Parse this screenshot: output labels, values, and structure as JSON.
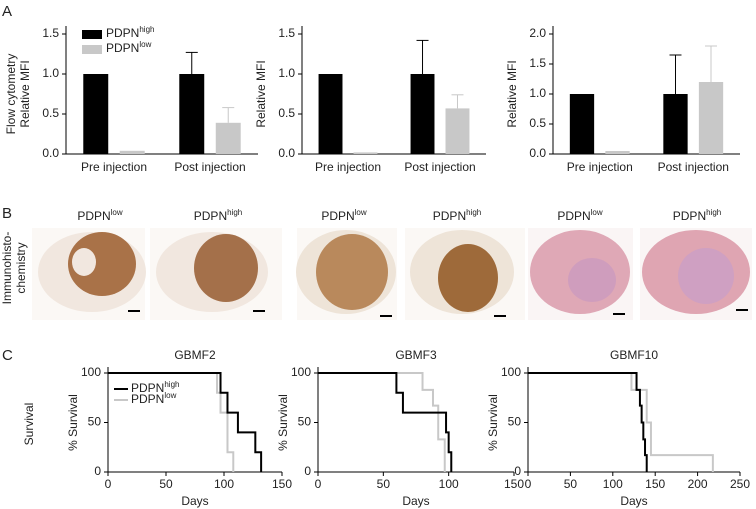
{
  "panel_labels": [
    "A",
    "B",
    "C"
  ],
  "row_labels": {
    "flow": "Flow cytometry",
    "ihc": [
      "Immunohisto-",
      "chemistry"
    ],
    "survival": "Survival"
  },
  "images": [
    {
      "name": "PDPN",
      "sup": "low"
    },
    {
      "name": "PDPN",
      "sup": "high"
    },
    {
      "name": "PDPN",
      "sup": "low"
    },
    {
      "name": "PDPN",
      "sup": "high"
    },
    {
      "name": "PDPN",
      "sup": "low"
    },
    {
      "name": "PDPN",
      "sup": "high"
    }
  ],
  "chart_data": [
    {
      "type": "bar",
      "ylabel": "Relative MFI",
      "categories": [
        "Pre injection",
        "Post injection"
      ],
      "legend": true,
      "ylim": [
        0,
        1.5
      ],
      "yticks": [
        {
          "value": 0,
          "label": "0.0"
        },
        0.5,
        {
          "value": 1,
          "label": "1.0"
        },
        1.5
      ],
      "series": [
        {
          "name": "PDPN",
          "sup": "high",
          "color": "#000000",
          "values": [
            1.0,
            1.0
          ],
          "errors": [
            null,
            0.27
          ]
        },
        {
          "name": "PDPN",
          "sup": "low",
          "color": "#c8c8c8",
          "values": [
            0.04,
            0.39
          ],
          "errors": [
            null,
            0.19
          ]
        }
      ]
    },
    {
      "type": "bar",
      "ylabel": "Relative MFI",
      "categories": [
        "Pre injection",
        "Post injection"
      ],
      "ylim": [
        0,
        1.5
      ],
      "yticks": [
        {
          "value": 0,
          "label": "0.0"
        },
        0.5,
        {
          "value": 1,
          "label": "1.0"
        },
        1.5
      ],
      "series": [
        {
          "color": "#000000",
          "values": [
            1.0,
            1.0
          ],
          "errors": [
            null,
            0.42
          ]
        },
        {
          "color": "#c8c8c8",
          "values": [
            0.02,
            0.57
          ],
          "errors": [
            null,
            0.17
          ]
        }
      ]
    },
    {
      "type": "bar",
      "ylabel": "Relative MFI",
      "categories": [
        "Pre injection",
        "Post injection"
      ],
      "ylim": [
        0,
        2
      ],
      "yticks": [
        {
          "value": 0,
          "label": "0.0"
        },
        0.5,
        {
          "value": 1,
          "label": "1.0"
        },
        1.5,
        {
          "value": 2,
          "label": "2.0"
        }
      ],
      "series": [
        {
          "color": "#000000",
          "values": [
            1.0,
            1.0
          ],
          "errors": [
            null,
            0.65
          ]
        },
        {
          "color": "#c8c8c8",
          "values": [
            0.05,
            1.2
          ],
          "errors": [
            null,
            0.6
          ]
        }
      ]
    },
    {
      "type": "step",
      "title": "GBMF2",
      "xlabel": "Days",
      "ylabel": "% Survival",
      "legend": true,
      "xlim": [
        0,
        150
      ],
      "xticks": [
        0,
        50,
        100,
        150
      ],
      "ylim": [
        0,
        100
      ],
      "yticks": [
        0,
        50,
        100
      ],
      "series": [
        {
          "name": "PDPN",
          "sup": "high",
          "color": "#000000",
          "x": [
            0,
            97,
            97,
            103,
            103,
            112,
            112,
            127,
            127,
            132,
            132
          ],
          "values": [
            100,
            100,
            80,
            80,
            60,
            60,
            40,
            40,
            20,
            20,
            0
          ]
        },
        {
          "name": "PDPN",
          "sup": "low",
          "color": "#c8c8c8",
          "x": [
            0,
            94,
            94,
            97,
            97,
            103,
            103,
            108,
            108
          ],
          "values": [
            100,
            100,
            80,
            80,
            60,
            60,
            20,
            20,
            0
          ]
        }
      ]
    },
    {
      "type": "step",
      "title": "GBMF3",
      "xlabel": "Days",
      "ylabel": "% Survival",
      "xlim": [
        0,
        150
      ],
      "xticks": [
        0,
        50,
        100,
        150
      ],
      "ylim": [
        0,
        100
      ],
      "yticks": [
        0,
        50,
        100
      ],
      "series": [
        {
          "color": "#000000",
          "x": [
            0,
            60,
            60,
            65,
            65,
            98,
            98,
            100,
            100,
            102,
            102
          ],
          "values": [
            100,
            100,
            80,
            80,
            60,
            60,
            40,
            40,
            20,
            20,
            0
          ]
        },
        {
          "color": "#c8c8c8",
          "x": [
            0,
            80,
            80,
            88,
            88,
            92,
            92,
            97,
            97
          ],
          "values": [
            100,
            100,
            83,
            83,
            67,
            67,
            33,
            33,
            0
          ]
        }
      ]
    },
    {
      "type": "step",
      "title": "GBMF10",
      "xlabel": "Days",
      "ylabel": "% Survival",
      "xlim": [
        0,
        250
      ],
      "xticks": [
        0,
        50,
        100,
        150,
        200,
        250
      ],
      "ylim": [
        0,
        100
      ],
      "yticks": [
        0,
        50,
        100
      ],
      "series": [
        {
          "color": "#000000",
          "x": [
            0,
            128,
            128,
            132,
            132,
            134,
            134,
            136,
            136,
            138,
            138,
            140,
            140
          ],
          "values": [
            100,
            100,
            83,
            83,
            67,
            67,
            50,
            50,
            33,
            33,
            17,
            17,
            0
          ]
        },
        {
          "color": "#c8c8c8",
          "x": [
            0,
            122,
            122,
            140,
            140,
            145,
            145,
            218,
            218
          ],
          "values": [
            100,
            100,
            83,
            83,
            50,
            50,
            17,
            17,
            0
          ]
        }
      ]
    }
  ]
}
